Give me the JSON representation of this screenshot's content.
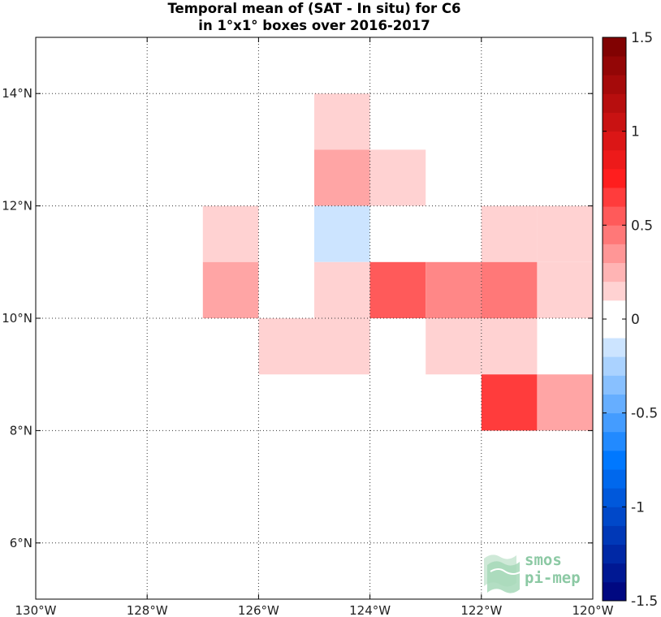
{
  "title": {
    "line1": "Temporal mean of (SAT - In situ) for C6",
    "line2": "in 1°x1° boxes over 2016-2017"
  },
  "logo": {
    "line1": "smos",
    "line2": "pi-mep"
  },
  "chart_data": {
    "type": "heatmap",
    "xlim": [
      -130,
      -120
    ],
    "ylim": [
      5,
      15
    ],
    "x_ticks": [
      {
        "value": -130,
        "label": "130°W"
      },
      {
        "value": -128,
        "label": "128°W"
      },
      {
        "value": -126,
        "label": "126°W"
      },
      {
        "value": -124,
        "label": "124°W"
      },
      {
        "value": -122,
        "label": "122°W"
      },
      {
        "value": -120,
        "label": "120°W"
      }
    ],
    "y_ticks": [
      {
        "value": 6,
        "label": "6°N"
      },
      {
        "value": 8,
        "label": "8°N"
      },
      {
        "value": 10,
        "label": "10°N"
      },
      {
        "value": 12,
        "label": "12°N"
      },
      {
        "value": 14,
        "label": "14°N"
      }
    ],
    "grid": "dotted",
    "cells": [
      {
        "lon": -125,
        "lat": 13,
        "value": 0.15
      },
      {
        "lon": -125,
        "lat": 12,
        "value": 0.3
      },
      {
        "lon": -124,
        "lat": 12,
        "value": 0.15
      },
      {
        "lon": -127,
        "lat": 11,
        "value": 0.15
      },
      {
        "lon": -125,
        "lat": 11,
        "value": -0.15
      },
      {
        "lon": -122,
        "lat": 11,
        "value": 0.15
      },
      {
        "lon": -121,
        "lat": 11,
        "value": 0.15
      },
      {
        "lon": -127,
        "lat": 10,
        "value": 0.3
      },
      {
        "lon": -125,
        "lat": 10,
        "value": 0.15
      },
      {
        "lon": -124,
        "lat": 10,
        "value": 0.55
      },
      {
        "lon": -123,
        "lat": 10,
        "value": 0.4
      },
      {
        "lon": -122,
        "lat": 10,
        "value": 0.45
      },
      {
        "lon": -121,
        "lat": 10,
        "value": 0.15
      },
      {
        "lon": -126,
        "lat": 9,
        "value": 0.15
      },
      {
        "lon": -125,
        "lat": 9,
        "value": 0.15
      },
      {
        "lon": -123,
        "lat": 9,
        "value": 0.15
      },
      {
        "lon": -122,
        "lat": 9,
        "value": 0.15
      },
      {
        "lon": -122,
        "lat": 8,
        "value": 0.65
      },
      {
        "lon": -121,
        "lat": 8,
        "value": 0.3
      }
    ],
    "colorbar": {
      "range": [
        -1.5,
        1.5
      ],
      "levels": 30,
      "ticks": [
        {
          "value": 1.5,
          "label": "1.5"
        },
        {
          "value": 1,
          "label": "1"
        },
        {
          "value": 0.5,
          "label": "0.5"
        },
        {
          "value": 0,
          "label": "0"
        },
        {
          "value": -0.5,
          "label": "-0.5"
        },
        {
          "value": -1,
          "label": "-1"
        },
        {
          "value": -1.5,
          "label": "-1.5"
        }
      ]
    }
  }
}
